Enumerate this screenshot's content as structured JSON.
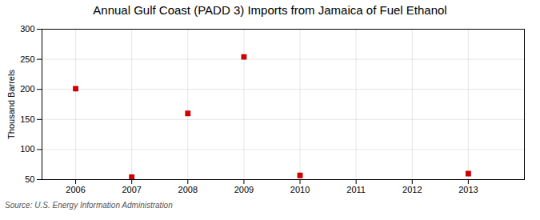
{
  "chart_data": {
    "type": "scatter",
    "title": "Annual Gulf Coast (PADD 3) Imports from Jamaica of Fuel Ethanol",
    "ylabel": "Thousand Barrels",
    "annotations": [
      "Source: U.S. Energy Information Administration"
    ],
    "x": [
      2006,
      2007,
      2008,
      2009,
      2010,
      2011,
      2012,
      2013
    ],
    "values": [
      201,
      54,
      160,
      254,
      57,
      null,
      null,
      60
    ],
    "color": "#cc0000",
    "marker": "square",
    "xlim": [
      2005.4,
      2014.0
    ],
    "xticks": [
      2006,
      2007,
      2008,
      2009,
      2010,
      2011,
      2012,
      2013
    ],
    "ylim": [
      50,
      300
    ],
    "yticks": [
      50,
      100,
      150,
      200,
      250,
      300
    ],
    "grid": true
  }
}
